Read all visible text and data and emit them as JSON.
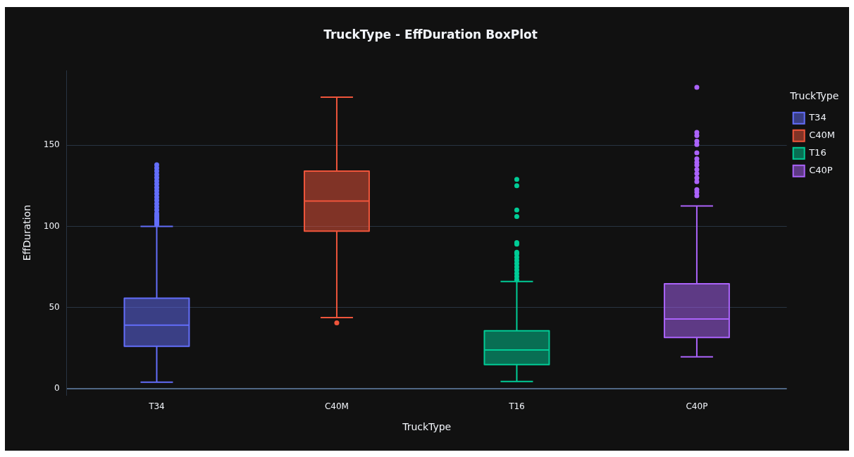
{
  "chart_data": {
    "type": "box",
    "title": "TruckType - EffDuration BoxPlot",
    "xlabel": "TruckType",
    "ylabel": "EffDuration",
    "legend_title": "TruckType",
    "categories": [
      "T34",
      "C40M",
      "T16",
      "C40P"
    ],
    "ylim": [
      -4,
      196
    ],
    "yticks": [
      0,
      50,
      100,
      150
    ],
    "grid": "y",
    "legend": "top right",
    "marker": "circle",
    "series": [
      {
        "name": "T34",
        "color": "#636efa",
        "boxes": [
          {
            "low": 3.8,
            "q1": 26,
            "median": 39,
            "q3": 55.6,
            "high": 100,
            "outliers": [
              101,
              102,
              103,
              104,
              105,
              106,
              107,
              108,
              110,
              112,
              114,
              116,
              118,
              120,
              122,
              124,
              126,
              128,
              130,
              132,
              134,
              136,
              138
            ]
          },
          null,
          null,
          null
        ]
      },
      {
        "name": "C40M",
        "color": "#ef553b",
        "boxes": [
          null,
          {
            "low": 43.7,
            "q1": 97,
            "median": 115.6,
            "q3": 134,
            "high": 179.7,
            "outliers": [
              40.4
            ]
          },
          null,
          null
        ]
      },
      {
        "name": "T16",
        "color": "#00cc96",
        "boxes": [
          null,
          null,
          {
            "low": 4.3,
            "q1": 14.7,
            "median": 23.7,
            "q3": 35.6,
            "high": 66,
            "outliers": [
              67,
              69,
              71,
              73,
              75,
              77,
              79,
              81,
              83,
              84,
              89,
              90,
              106,
              110,
              125,
              129
            ]
          },
          null
        ]
      },
      {
        "name": "C40P",
        "color": "#ab63fa",
        "boxes": [
          null,
          null,
          null,
          {
            "low": 19.5,
            "q1": 31.4,
            "median": 42.8,
            "q3": 64.6,
            "high": 112.6,
            "outliers": [
              118.8,
              121,
              122.7,
              127.5,
              129.8,
              132.5,
              135,
              137.8,
              139.5,
              141.7,
              145.4,
              150.5,
              152.5,
              156,
              158,
              185.7
            ]
          }
        ]
      }
    ]
  }
}
